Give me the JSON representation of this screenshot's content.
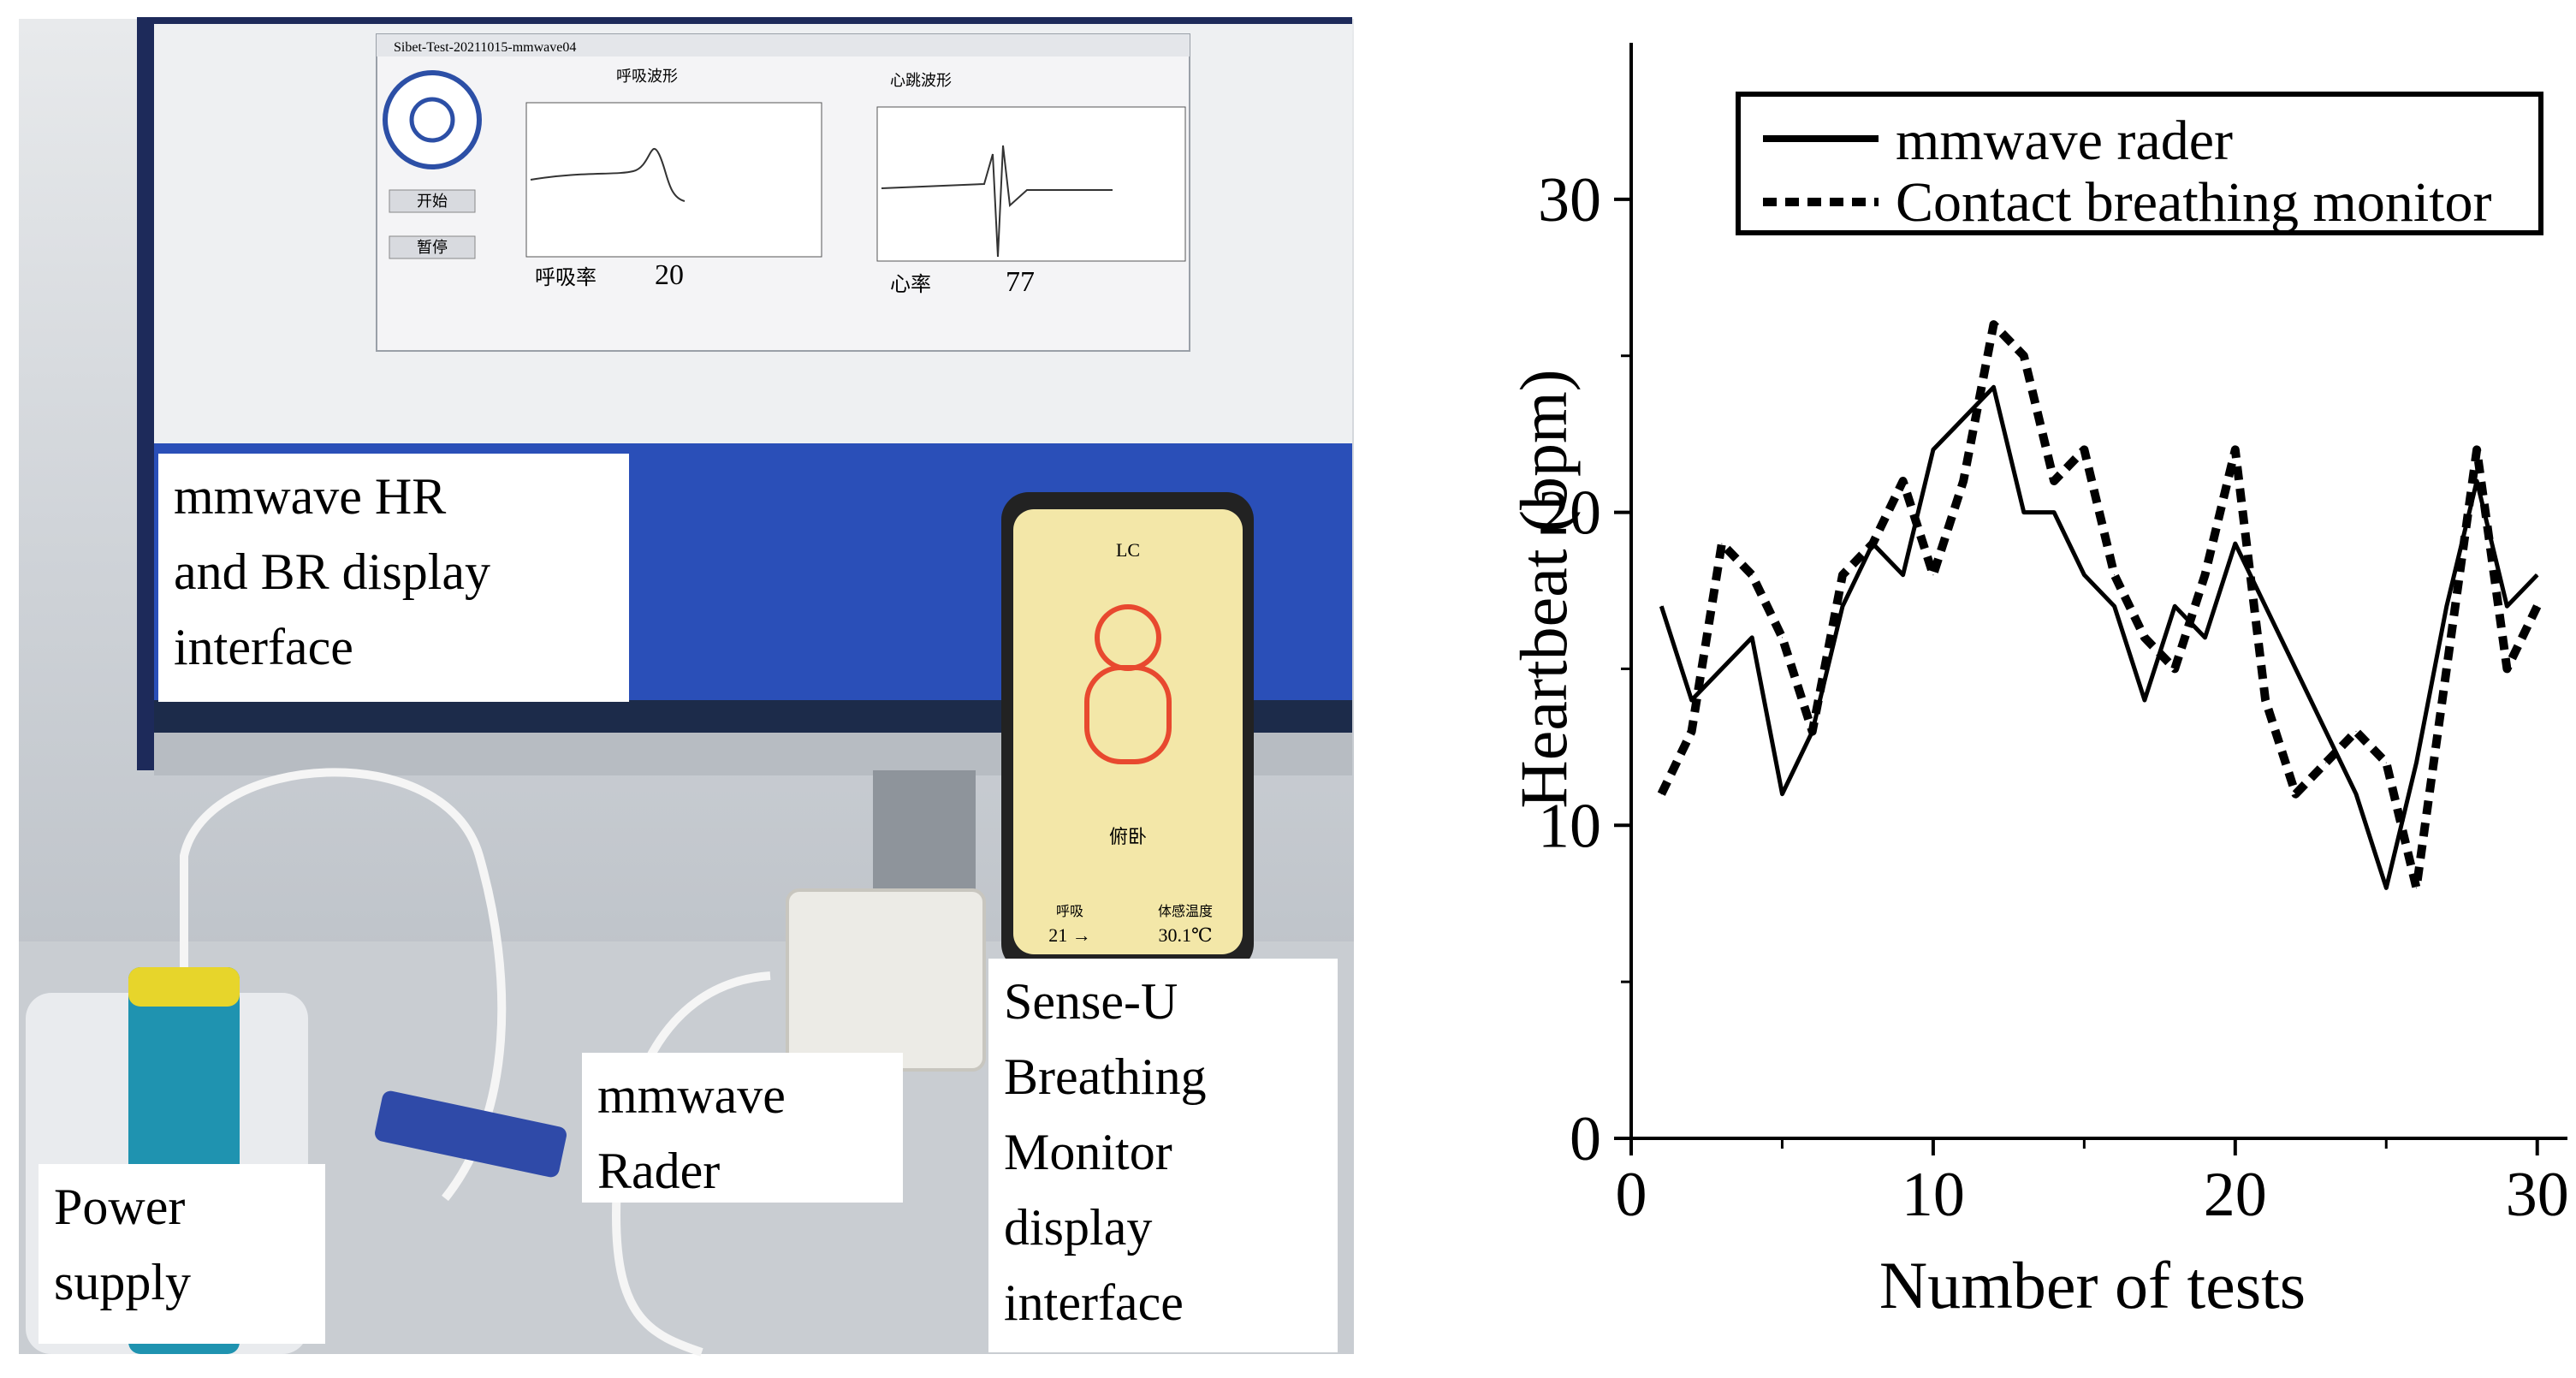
{
  "photo": {
    "labels": {
      "display": "mmwave HR\nand BR display\ninterface",
      "power": "Power\nsupply",
      "radar": "mmwave\nRader",
      "senseu": "Sense-U\nBreathing\nMonitor\ndisplay\ninterface"
    },
    "monitor": {
      "window_title": "Sibet-Test-20211015-mmwave04",
      "breath_title": "呼吸波形",
      "heart_title": "心跳波形",
      "start_button": "开始",
      "pause_button": "暂停",
      "breath_rate_label": "呼吸率",
      "breath_rate_value": "20",
      "heart_rate_label": "心率",
      "heart_rate_value": "77"
    },
    "phone": {
      "header": "LC",
      "status": "俯卧",
      "left_label": "呼吸",
      "left_value": "21 →",
      "right_label": "体感温度",
      "right_value": "30.1℃"
    }
  },
  "colors": {
    "screen": "#eef0f2",
    "desktop_blue": "#2a4fb8",
    "phone_screen": "#f3e7a8",
    "baby_red": "#e8492f"
  },
  "chart_data": {
    "type": "line",
    "xlabel": "Number of tests",
    "ylabel": "Heartbeat (bpm)",
    "xlim": [
      0,
      31
    ],
    "ylim": [
      0,
      35
    ],
    "xticks": [
      0,
      10,
      20,
      30
    ],
    "yticks": [
      0,
      10,
      20,
      30
    ],
    "legend_position": "top-right",
    "series": [
      {
        "name": "mmwave rader",
        "style": "solid",
        "x": [
          1,
          2,
          3,
          4,
          5,
          6,
          7,
          8,
          9,
          10,
          11,
          12,
          13,
          14,
          15,
          16,
          17,
          18,
          19,
          20,
          21,
          22,
          23,
          24,
          25,
          26,
          27,
          28,
          29,
          30
        ],
        "values": [
          17,
          14,
          15,
          16,
          11,
          13,
          17,
          19,
          18,
          22,
          23,
          24,
          20,
          20,
          18,
          17,
          14,
          17,
          16,
          19,
          17,
          15,
          13,
          11,
          8,
          12,
          17,
          21,
          17,
          18
        ]
      },
      {
        "name": "Contact breathing monitor",
        "style": "dashed",
        "x": [
          1,
          2,
          3,
          4,
          5,
          6,
          7,
          8,
          9,
          10,
          11,
          12,
          13,
          14,
          15,
          16,
          17,
          18,
          19,
          20,
          21,
          22,
          23,
          24,
          25,
          26,
          27,
          28,
          29,
          30
        ],
        "values": [
          11,
          13,
          19,
          18,
          16,
          13,
          18,
          19,
          21,
          18,
          21,
          26,
          25,
          21,
          22,
          18,
          16,
          15,
          18,
          22,
          14,
          11,
          12,
          13,
          12,
          8,
          15,
          22,
          15,
          17
        ]
      }
    ]
  }
}
